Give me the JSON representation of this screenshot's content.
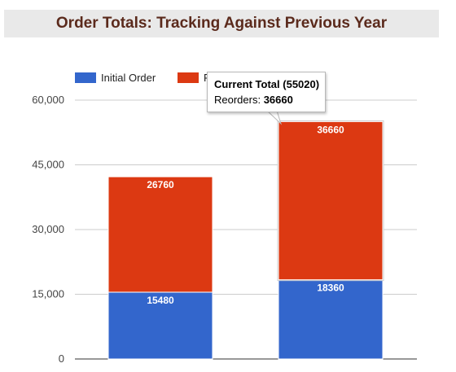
{
  "chart_data": {
    "type": "bar",
    "stacked": true,
    "title": "Order Totals: Tracking Against Previous Year",
    "categories": [
      "",
      ""
    ],
    "series": [
      {
        "name": "Initial Order",
        "color": "#3366cc",
        "values": [
          15480,
          18360
        ]
      },
      {
        "name": "Reorders",
        "color": "#dc3912",
        "values": [
          26760,
          36660
        ]
      }
    ],
    "ylim": [
      0,
      60000
    ],
    "yticks": [
      "0",
      "15,000",
      "30,000",
      "45,000",
      "60,000"
    ],
    "grid": true,
    "legend_position": "top-left",
    "legend_visible_labels": [
      "Initial Order",
      "R"
    ],
    "tooltip": {
      "title": "Current Total (55020)",
      "label": "Reorders:",
      "value": "36660"
    }
  }
}
